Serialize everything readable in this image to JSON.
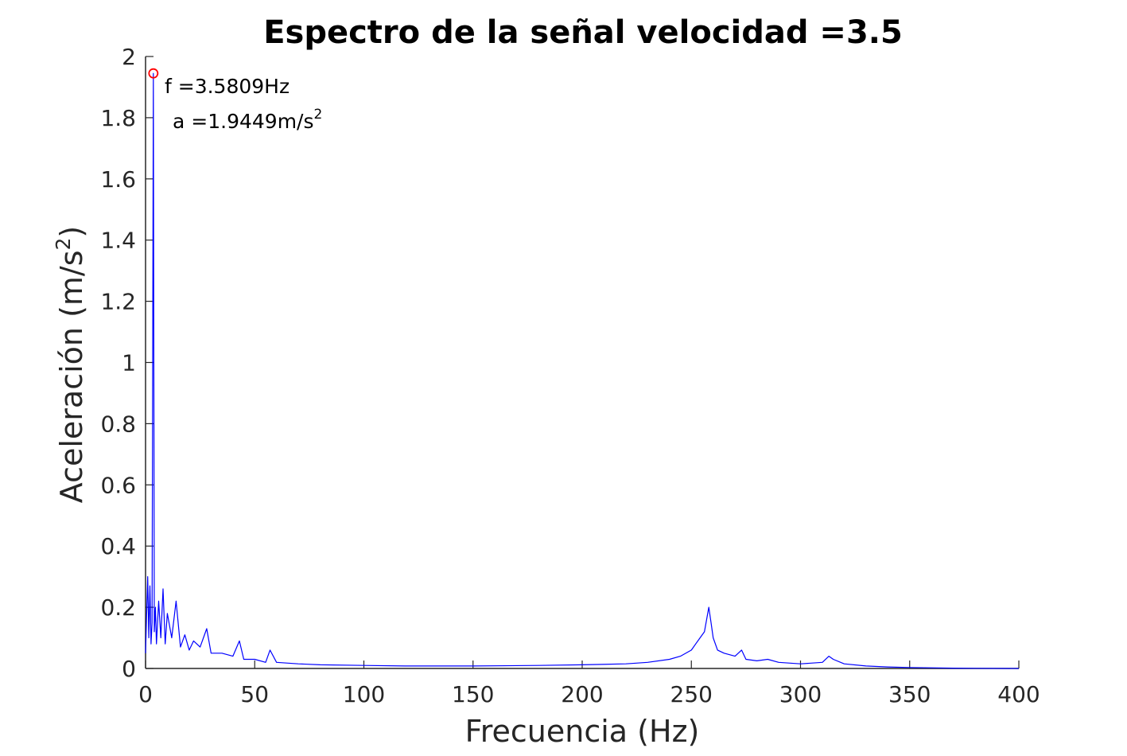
{
  "chart_data": {
    "type": "line",
    "title": "Espectro de la señal velocidad =3.5",
    "xlabel": "Frecuencia (Hz)",
    "ylabel_main": "Aceleración (m/s",
    "ylabel_sup": "2",
    "ylabel_close": ")",
    "xlim": [
      0,
      400
    ],
    "ylim": [
      0,
      2
    ],
    "xticks": [
      0,
      50,
      100,
      150,
      200,
      250,
      300,
      350,
      400
    ],
    "xtick_labels": [
      "0",
      "50",
      "100",
      "150",
      "200",
      "250",
      "300",
      "350",
      "400"
    ],
    "yticks": [
      0,
      0.2,
      0.4,
      0.6,
      0.8,
      1,
      1.2,
      1.4,
      1.6,
      1.8,
      2
    ],
    "ytick_labels": [
      "0",
      "0.2",
      "0.4",
      "0.6",
      "0.8",
      "1",
      "1.2",
      "1.4",
      "1.6",
      "1.8",
      "2"
    ],
    "grid": false,
    "series": [
      {
        "color": "#0000ff",
        "x": [
          0,
          1,
          1.5,
          2,
          2.5,
          3,
          3.5809,
          4,
          4.5,
          5,
          6,
          7,
          8,
          9,
          10,
          12,
          14,
          16,
          18,
          20,
          22,
          25,
          28,
          30,
          35,
          40,
          43,
          45,
          50,
          55,
          57,
          60,
          70,
          80,
          100,
          120,
          150,
          180,
          200,
          220,
          230,
          240,
          245,
          250,
          252,
          254,
          256,
          258,
          259,
          260,
          262,
          265,
          270,
          273,
          275,
          280,
          285,
          290,
          300,
          310,
          313,
          315,
          320,
          330,
          340,
          350,
          360,
          370,
          380,
          400
        ],
        "y": [
          0.05,
          0.3,
          0.1,
          0.27,
          0.08,
          0.15,
          1.9449,
          0.12,
          0.2,
          0.08,
          0.22,
          0.1,
          0.26,
          0.08,
          0.18,
          0.1,
          0.22,
          0.07,
          0.11,
          0.06,
          0.09,
          0.07,
          0.13,
          0.05,
          0.05,
          0.04,
          0.09,
          0.03,
          0.03,
          0.02,
          0.06,
          0.02,
          0.015,
          0.012,
          0.01,
          0.008,
          0.008,
          0.01,
          0.012,
          0.015,
          0.02,
          0.03,
          0.04,
          0.06,
          0.08,
          0.1,
          0.12,
          0.2,
          0.15,
          0.1,
          0.06,
          0.05,
          0.04,
          0.06,
          0.03,
          0.025,
          0.03,
          0.02,
          0.015,
          0.02,
          0.04,
          0.03,
          0.015,
          0.008,
          0.005,
          0.003,
          0.002,
          0.001,
          0.0005,
          0
        ]
      }
    ],
    "marker": {
      "x": 3.5809,
      "y": 1.9449,
      "color": "#ff0000"
    },
    "annotation": {
      "line1": "f =3.5809Hz",
      "line2": "a =1.9449m/s",
      "line2_sup": "2"
    }
  }
}
